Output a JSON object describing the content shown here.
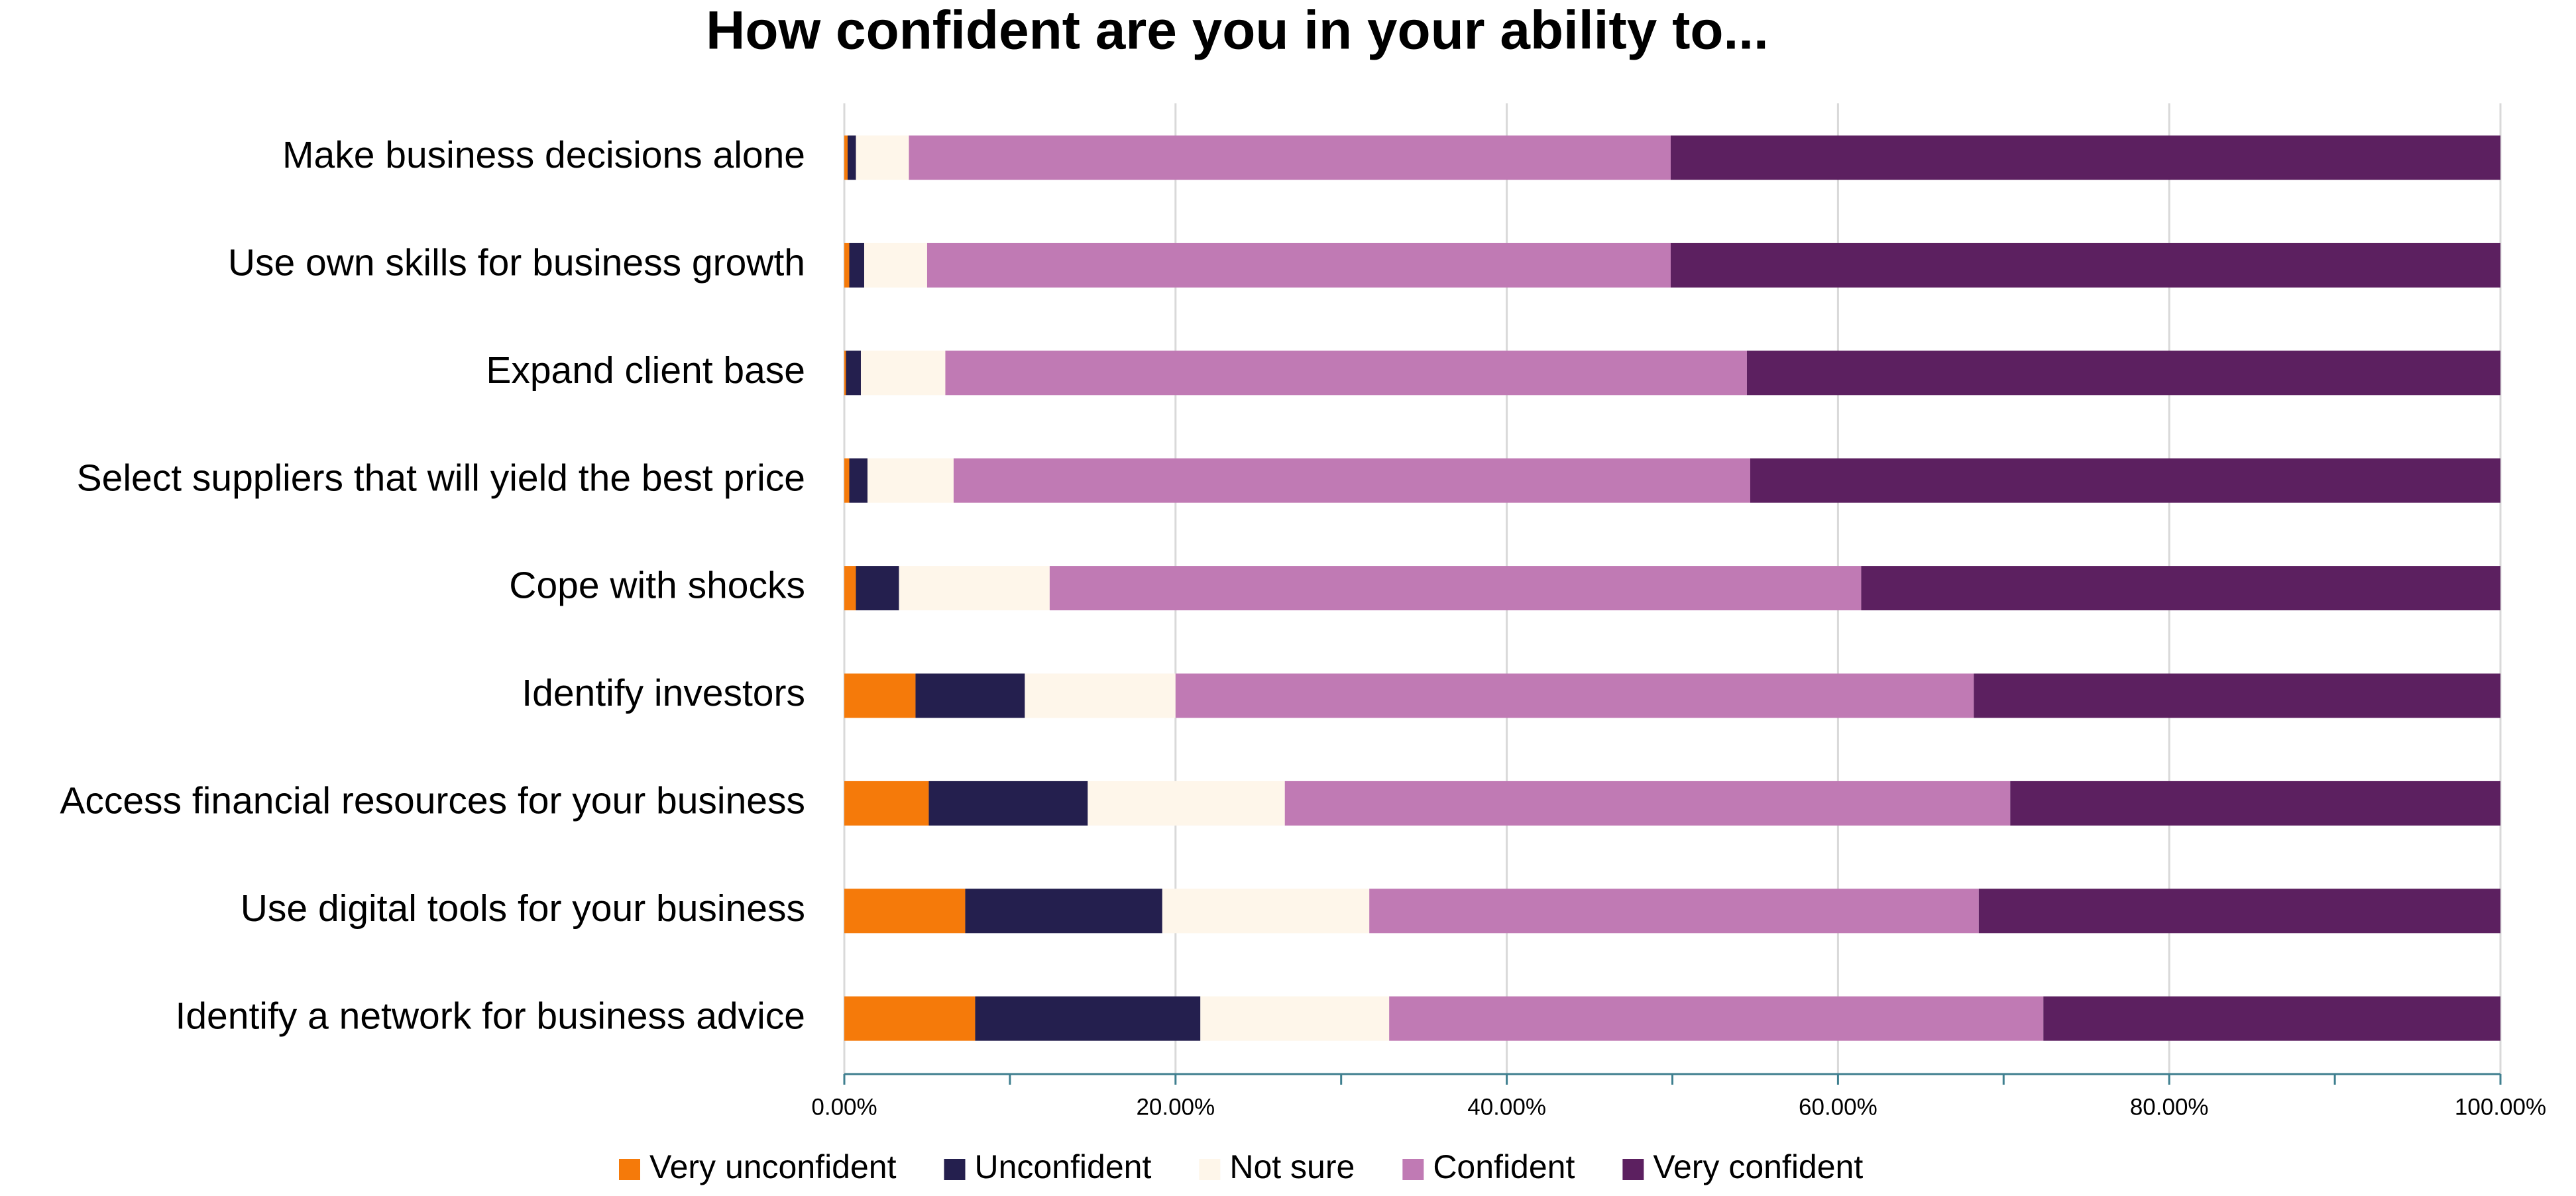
{
  "chart_data": {
    "type": "stacked_bar_horizontal",
    "title": "How confident are you in your ability to...",
    "categories": [
      "Make business decisions alone",
      "Use own skills for business growth",
      "Expand client base",
      "Select suppliers that will yield the best price",
      "Cope with shocks",
      "Identify investors",
      "Access financial resources for your business",
      "Use digital tools for your business",
      "Identify a network for business advice"
    ],
    "series": [
      {
        "name": "Very unconfident",
        "color": "#f57a0a",
        "values": [
          0.2,
          0.3,
          0.1,
          0.3,
          0.7,
          4.3,
          5.1,
          7.3,
          7.9
        ]
      },
      {
        "name": "Unconfident",
        "color": "#241f4e",
        "values": [
          0.5,
          0.9,
          0.9,
          1.1,
          2.6,
          6.6,
          9.6,
          11.9,
          13.6
        ]
      },
      {
        "name": "Not sure",
        "color": "#fef6ea",
        "values": [
          3.2,
          3.8,
          5.1,
          5.2,
          9.1,
          9.1,
          11.9,
          12.5,
          11.4
        ]
      },
      {
        "name": "Confident",
        "color": "#c07ab4",
        "values": [
          46.0,
          44.9,
          48.4,
          48.1,
          49.0,
          48.2,
          43.8,
          36.8,
          39.5
        ]
      },
      {
        "name": "Very confident",
        "color": "#5c2060",
        "values": [
          50.1,
          50.1,
          45.5,
          45.3,
          38.6,
          31.8,
          29.6,
          31.5,
          27.6
        ]
      }
    ],
    "xlim": [
      0,
      100
    ],
    "xticks": [
      {
        "value": 0,
        "label": "0.00%"
      },
      {
        "value": 20,
        "label": "20.00%"
      },
      {
        "value": 40,
        "label": "40.00%"
      },
      {
        "value": 60,
        "label": "60.00%"
      },
      {
        "value": 80,
        "label": "80.00%"
      },
      {
        "value": 100,
        "label": "100.00%"
      }
    ],
    "xminorticks": [
      10,
      30,
      50,
      70,
      90
    ],
    "grid": true,
    "legend": "bottom"
  }
}
